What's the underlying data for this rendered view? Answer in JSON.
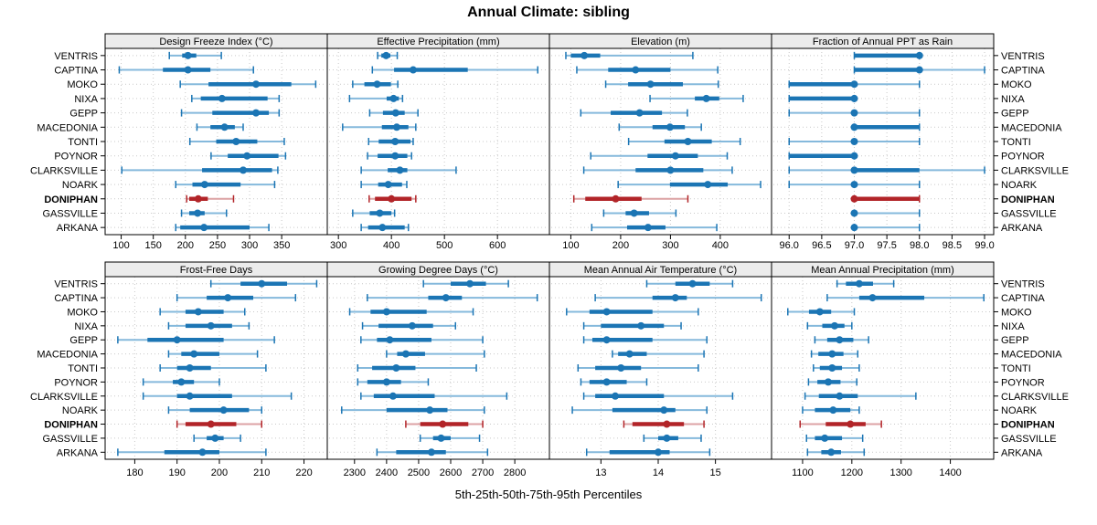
{
  "title": "Annual Climate: sibling",
  "xlabel": "5th-25th-50th-75th-95th Percentiles",
  "percentiles_shown": [
    5,
    25,
    50,
    75,
    95
  ],
  "locations": [
    "VENTRIS",
    "CAPTINA",
    "MOKO",
    "NIXA",
    "GEPP",
    "MACEDONIA",
    "TONTI",
    "POYNOR",
    "CLARKSVILLE",
    "NOARK",
    "DONIPHAN",
    "GASSVILLE",
    "ARKANA"
  ],
  "highlight_location": "DONIPHAN",
  "colors": {
    "series_main": "#1b75b4",
    "series_light": "#85b9dc",
    "highlight_main": "#b22428",
    "highlight_light": "#dca2a4",
    "strip_bg": "#ececec",
    "panel_border": "#000000",
    "grid": "#c9c9c9",
    "text": "#000000"
  },
  "chart_data": {
    "type": "percentile-dotplot",
    "grid": "on",
    "panel_rows": 2,
    "panel_cols": 4,
    "panels": [
      {
        "row": 0,
        "col": 0,
        "title": "Design Freeze Index (°C)",
        "xlim": [
          75,
          421
        ],
        "ticks": [
          100,
          150,
          200,
          250,
          300,
          350
        ],
        "tick_decimals": 0,
        "values": [
          [
            175,
            195,
            204,
            217,
            256
          ],
          [
            97,
            165,
            204,
            239,
            306
          ],
          [
            192,
            236,
            310,
            365,
            403
          ],
          [
            210,
            224,
            257,
            328,
            346
          ],
          [
            194,
            242,
            310,
            330,
            346
          ],
          [
            218,
            239,
            261,
            277,
            290
          ],
          [
            207,
            248,
            279,
            312,
            354
          ],
          [
            240,
            266,
            296,
            345,
            356
          ],
          [
            101,
            226,
            290,
            335,
            344
          ],
          [
            185,
            211,
            230,
            286,
            339
          ],
          [
            202,
            206,
            220,
            235,
            275
          ],
          [
            194,
            206,
            219,
            230,
            264
          ],
          [
            185,
            192,
            229,
            300,
            330
          ]
        ]
      },
      {
        "row": 0,
        "col": 1,
        "title": "Effective Precipitation (mm)",
        "xlim": [
          279,
          698
        ],
        "ticks": [
          300,
          400,
          500,
          600
        ],
        "tick_decimals": 0,
        "values": [
          [
            374,
            381,
            390,
            398,
            411
          ],
          [
            364,
            405,
            441,
            544,
            676
          ],
          [
            327,
            349,
            373,
            399,
            412
          ],
          [
            321,
            391,
            404,
            414,
            421
          ],
          [
            359,
            384,
            408,
            425,
            450
          ],
          [
            308,
            382,
            410,
            432,
            446
          ],
          [
            357,
            376,
            407,
            436,
            441
          ],
          [
            355,
            374,
            407,
            430,
            438
          ],
          [
            343,
            393,
            416,
            430,
            522
          ],
          [
            343,
            375,
            394,
            420,
            429
          ],
          [
            358,
            369,
            400,
            438,
            446
          ],
          [
            327,
            359,
            378,
            400,
            406
          ],
          [
            343,
            356,
            383,
            425,
            432
          ]
        ]
      },
      {
        "row": 0,
        "col": 2,
        "title": "Elevation (m)",
        "xlim": [
          57,
          503
        ],
        "ticks": [
          100,
          200,
          300,
          400
        ],
        "tick_decimals": 0,
        "values": [
          [
            90,
            100,
            127,
            159,
            345
          ],
          [
            112,
            175,
            230,
            300,
            395
          ],
          [
            170,
            215,
            260,
            325,
            396
          ],
          [
            259,
            349,
            372,
            398,
            446
          ],
          [
            120,
            180,
            238,
            283,
            334
          ],
          [
            197,
            264,
            299,
            329,
            362
          ],
          [
            216,
            288,
            335,
            383,
            440
          ],
          [
            140,
            254,
            310,
            355,
            414
          ],
          [
            126,
            230,
            300,
            366,
            424
          ],
          [
            195,
            299,
            375,
            415,
            481
          ],
          [
            106,
            129,
            190,
            242,
            335
          ],
          [
            166,
            210,
            227,
            257,
            311
          ],
          [
            142,
            213,
            255,
            290,
            393
          ]
        ]
      },
      {
        "row": 0,
        "col": 3,
        "title": "Fraction of Annual PPT as Rain",
        "xlim": [
          95.73,
          99.14
        ],
        "ticks": [
          96.0,
          96.5,
          97.0,
          97.5,
          98.0,
          98.5,
          99.0
        ],
        "tick_decimals": 1,
        "values": [
          [
            97,
            97,
            98,
            98,
            98
          ],
          [
            97,
            97,
            98,
            98,
            99
          ],
          [
            96,
            96,
            97,
            97,
            98
          ],
          [
            96,
            96,
            97,
            97,
            97
          ],
          [
            96,
            97,
            97,
            97,
            98
          ],
          [
            97,
            97,
            97,
            98,
            98
          ],
          [
            96,
            97,
            97,
            97,
            98
          ],
          [
            96,
            96,
            97,
            97,
            97
          ],
          [
            96,
            97,
            97,
            98,
            99
          ],
          [
            96,
            97,
            97,
            97,
            98
          ],
          [
            97,
            97,
            97,
            98,
            98
          ],
          [
            97,
            97,
            97,
            97,
            98
          ],
          [
            97,
            97,
            97,
            97,
            98
          ]
        ]
      },
      {
        "row": 1,
        "col": 0,
        "title": "Frost-Free Days",
        "xlim": [
          173,
          225.5
        ],
        "ticks": [
          180,
          190,
          200,
          210,
          220
        ],
        "tick_decimals": 0,
        "values": [
          [
            198,
            205,
            210,
            216,
            223
          ],
          [
            190,
            197,
            202,
            208,
            218
          ],
          [
            186,
            192,
            195,
            201,
            206
          ],
          [
            188,
            192,
            198,
            203,
            207
          ],
          [
            176,
            183,
            190,
            201,
            213
          ],
          [
            188,
            191,
            194,
            200,
            209
          ],
          [
            186,
            190,
            193,
            198,
            211
          ],
          [
            182,
            189,
            191,
            194,
            200
          ],
          [
            182,
            190,
            193,
            203,
            217
          ],
          [
            188,
            193,
            201,
            207,
            210
          ],
          [
            190,
            192,
            198,
            204,
            210
          ],
          [
            194,
            197,
            199,
            201,
            205
          ],
          [
            176,
            187,
            196,
            200,
            211
          ]
        ]
      },
      {
        "row": 1,
        "col": 1,
        "title": "Growing Degree Days (°C)",
        "xlim": [
          2215,
          2908
        ],
        "ticks": [
          2300,
          2400,
          2500,
          2600,
          2700,
          2800
        ],
        "tick_decimals": 0,
        "values": [
          [
            2515,
            2600,
            2660,
            2710,
            2780
          ],
          [
            2340,
            2530,
            2585,
            2635,
            2870
          ],
          [
            2285,
            2350,
            2400,
            2525,
            2670
          ],
          [
            2325,
            2375,
            2480,
            2545,
            2615
          ],
          [
            2320,
            2370,
            2410,
            2540,
            2700
          ],
          [
            2400,
            2433,
            2460,
            2520,
            2705
          ],
          [
            2310,
            2355,
            2430,
            2490,
            2680
          ],
          [
            2310,
            2340,
            2400,
            2445,
            2530
          ],
          [
            2320,
            2360,
            2420,
            2550,
            2775
          ],
          [
            2260,
            2400,
            2535,
            2590,
            2705
          ],
          [
            2460,
            2505,
            2575,
            2655,
            2700
          ],
          [
            2505,
            2545,
            2570,
            2600,
            2690
          ],
          [
            2370,
            2430,
            2540,
            2585,
            2715
          ]
        ]
      },
      {
        "row": 1,
        "col": 2,
        "title": "Mean Annual Air Temperature (°C)",
        "xlim": [
          12.1,
          15.98
        ],
        "ticks": [
          13,
          14,
          15
        ],
        "tick_decimals": 0,
        "values": [
          [
            13.8,
            14.3,
            14.6,
            14.9,
            15.3
          ],
          [
            12.9,
            13.9,
            14.3,
            14.5,
            15.8
          ],
          [
            12.4,
            12.8,
            13.1,
            13.9,
            14.7
          ],
          [
            12.7,
            13.0,
            13.7,
            14.1,
            14.4
          ],
          [
            12.7,
            12.85,
            13.1,
            13.9,
            14.85
          ],
          [
            13.2,
            13.3,
            13.5,
            13.8,
            14.8
          ],
          [
            12.6,
            12.9,
            13.35,
            13.7,
            14.7
          ],
          [
            12.65,
            12.8,
            13.1,
            13.45,
            13.8
          ],
          [
            12.7,
            12.9,
            13.25,
            14.1,
            15.3
          ],
          [
            12.5,
            13.2,
            14.1,
            14.3,
            14.85
          ],
          [
            13.4,
            13.55,
            14.15,
            14.45,
            14.8
          ],
          [
            13.75,
            14.0,
            14.15,
            14.35,
            14.75
          ],
          [
            12.75,
            13.15,
            14.0,
            14.2,
            14.9
          ]
        ]
      },
      {
        "row": 1,
        "col": 3,
        "title": "Mean Annual Precipitation (mm)",
        "xlim": [
          1037,
          1488
        ],
        "ticks": [
          1100,
          1200,
          1300,
          1400
        ],
        "tick_decimals": 0,
        "values": [
          [
            1170,
            1188,
            1215,
            1243,
            1285
          ],
          [
            1150,
            1215,
            1242,
            1347,
            1468
          ],
          [
            1070,
            1113,
            1135,
            1158,
            1205
          ],
          [
            1110,
            1140,
            1165,
            1185,
            1200
          ],
          [
            1125,
            1150,
            1175,
            1203,
            1234
          ],
          [
            1118,
            1132,
            1160,
            1183,
            1212
          ],
          [
            1122,
            1135,
            1160,
            1180,
            1215
          ],
          [
            1112,
            1130,
            1152,
            1177,
            1210
          ],
          [
            1105,
            1133,
            1175,
            1212,
            1330
          ],
          [
            1100,
            1125,
            1162,
            1197,
            1215
          ],
          [
            1095,
            1147,
            1197,
            1228,
            1260
          ],
          [
            1108,
            1125,
            1145,
            1180,
            1222
          ],
          [
            1110,
            1138,
            1158,
            1178,
            1225
          ]
        ]
      }
    ]
  }
}
